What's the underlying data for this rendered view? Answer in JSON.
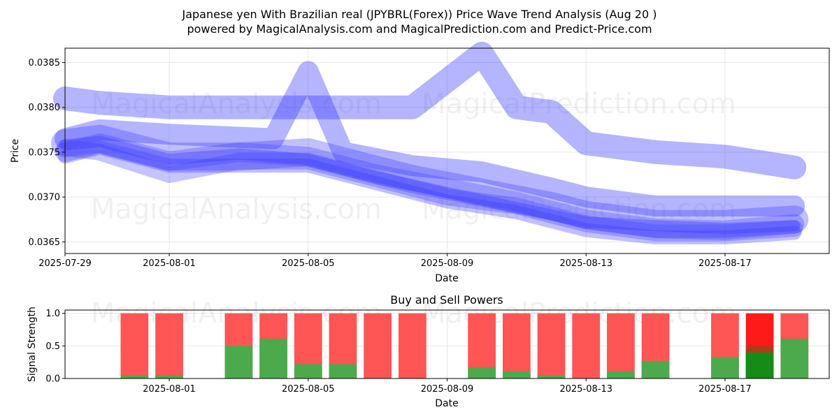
{
  "title_line1": "Japanese yen With Brazilian real (JPYBRL(Forex)) Price Wave Trend Analysis (Aug 20 )",
  "title_line2": "powered by MagicalAnalysis.com and MagicalPrediction.com and Predict-Price.com",
  "watermarks": {
    "analysis": "MagicalAnalysis.com",
    "prediction": "MagicalPrediction.com"
  },
  "colors": {
    "wave": "#3a3aff",
    "buy": "#4caa4c",
    "sell": "#ff4c4c",
    "buy_strong": "#168c16",
    "sell_strong": "#ff1a1a"
  },
  "chart_data": [
    {
      "type": "line",
      "title": "",
      "xlabel": "Date",
      "ylabel": "Price",
      "x_start": "2025-07-29",
      "xlim": [
        "2025-07-29",
        "2025-08-20"
      ],
      "ylim": [
        0.03637,
        0.03866
      ],
      "xticks": [
        "2025-07-29",
        "2025-08-01",
        "2025-08-05",
        "2025-08-09",
        "2025-08-13",
        "2025-08-17"
      ],
      "yticks": [
        "0.0365",
        "0.0370",
        "0.0375",
        "0.0380",
        "0.0385"
      ],
      "grid": true,
      "series": [
        {
          "x": [
            "2025-07-29",
            "2025-07-30",
            "2025-08-01",
            "2025-08-04",
            "2025-08-07",
            "2025-08-08",
            "2025-08-10",
            "2025-08-11",
            "2025-08-12",
            "2025-08-13",
            "2025-08-15",
            "2025-08-17",
            "2025-08-19"
          ],
          "values": [
            0.0381,
            0.03805,
            0.038,
            0.038,
            0.038,
            0.038,
            0.0386,
            0.038,
            0.03795,
            0.0376,
            0.0375,
            0.03745,
            0.03733
          ]
        },
        {
          "x": [
            "2025-07-29",
            "2025-07-30",
            "2025-08-01",
            "2025-08-04",
            "2025-08-05",
            "2025-08-06",
            "2025-08-08",
            "2025-08-10",
            "2025-08-12",
            "2025-08-13",
            "2025-08-15",
            "2025-08-17",
            "2025-08-19"
          ],
          "values": [
            0.03765,
            0.03775,
            0.0377,
            0.03765,
            0.0384,
            0.0375,
            0.03735,
            0.03728,
            0.0371,
            0.037,
            0.0369,
            0.0369,
            0.0369
          ]
        },
        {
          "x": [
            "2025-07-29",
            "2025-07-30",
            "2025-08-01",
            "2025-08-03",
            "2025-08-05",
            "2025-08-06",
            "2025-08-08",
            "2025-08-10",
            "2025-08-12",
            "2025-08-13",
            "2025-08-15",
            "2025-08-17",
            "2025-08-19"
          ],
          "values": [
            0.0376,
            0.03765,
            0.03745,
            0.03745,
            0.0375,
            0.0374,
            0.0372,
            0.03705,
            0.0369,
            0.0368,
            0.0367,
            0.0367,
            0.03675
          ]
        },
        {
          "x": [
            "2025-07-29",
            "2025-07-30",
            "2025-08-01",
            "2025-08-03",
            "2025-08-05",
            "2025-08-07",
            "2025-08-09",
            "2025-08-11",
            "2025-08-13",
            "2025-08-15",
            "2025-08-17",
            "2025-08-19"
          ],
          "values": [
            0.0375,
            0.0376,
            0.0374,
            0.0375,
            0.03745,
            0.03725,
            0.0371,
            0.03695,
            0.03675,
            0.03665,
            0.03663,
            0.0367
          ]
        },
        {
          "x": [
            "2025-07-29",
            "2025-07-30",
            "2025-08-01",
            "2025-08-03",
            "2025-08-05",
            "2025-08-07",
            "2025-08-09",
            "2025-08-11",
            "2025-08-13",
            "2025-08-15",
            "2025-08-17",
            "2025-08-19"
          ],
          "values": [
            0.03755,
            0.0375,
            0.03725,
            0.0374,
            0.0374,
            0.0372,
            0.037,
            0.0369,
            0.0367,
            0.0366,
            0.0366,
            0.03665
          ]
        },
        {
          "x": [
            "2025-07-29",
            "2025-07-30",
            "2025-08-01",
            "2025-08-03",
            "2025-08-05",
            "2025-08-07",
            "2025-08-09",
            "2025-08-11",
            "2025-08-13",
            "2025-08-15",
            "2025-08-17",
            "2025-08-19"
          ],
          "values": [
            0.03745,
            0.03755,
            0.03735,
            0.03735,
            0.03735,
            0.03715,
            0.03695,
            0.03683,
            0.03663,
            0.03655,
            0.03655,
            0.0366
          ]
        },
        {
          "x": [
            "2025-07-29",
            "2025-07-30",
            "2025-08-01",
            "2025-08-03",
            "2025-08-05",
            "2025-08-07",
            "2025-08-09",
            "2025-08-11",
            "2025-08-13",
            "2025-08-15",
            "2025-08-17",
            "2025-08-19"
          ],
          "values": [
            0.03758,
            0.03762,
            0.03742,
            0.03748,
            0.03742,
            0.03722,
            0.03705,
            0.03688,
            0.03672,
            0.03668,
            0.03665,
            0.03668
          ]
        }
      ]
    },
    {
      "type": "bar",
      "title": "Buy and Sell Powers",
      "xlabel": "Date",
      "ylabel": "Signal Strength",
      "ylim": [
        0,
        1.05
      ],
      "xlim": [
        "2025-07-29",
        "2025-08-20"
      ],
      "xticks": [
        "2025-08-01",
        "2025-08-05",
        "2025-08-09",
        "2025-08-13",
        "2025-08-17"
      ],
      "yticks": [
        "0.0",
        "0.5",
        "1.0"
      ],
      "grid": true,
      "categories": [
        "2025-07-31",
        "2025-08-01",
        "2025-08-03",
        "2025-08-04",
        "2025-08-05",
        "2025-08-06",
        "2025-08-07",
        "2025-08-08",
        "2025-08-10",
        "2025-08-11",
        "2025-08-12",
        "2025-08-13",
        "2025-08-14",
        "2025-08-15",
        "2025-08-17",
        "2025-08-18",
        "2025-08-19"
      ],
      "series": [
        {
          "name": "Buy",
          "values": [
            0.05,
            0.05,
            0.5,
            0.61,
            0.22,
            0.22,
            0.0,
            0.0,
            0.17,
            0.11,
            0.05,
            0.0,
            0.11,
            0.27,
            0.33,
            0.4,
            0.61
          ]
        },
        {
          "name": "Sell",
          "values": [
            1.0,
            1.0,
            1.0,
            1.0,
            1.0,
            1.0,
            1.0,
            1.0,
            1.0,
            1.0,
            1.0,
            1.0,
            1.0,
            1.0,
            1.0,
            1.0,
            1.0
          ]
        }
      ],
      "highlight": "2025-08-18"
    }
  ]
}
